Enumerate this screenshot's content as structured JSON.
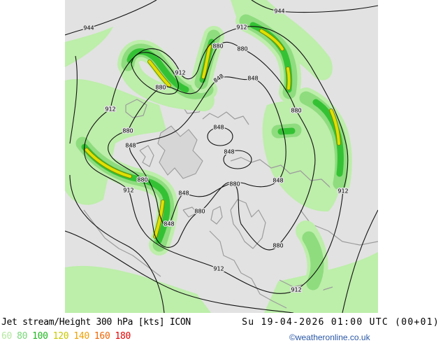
{
  "map": {
    "contour_labels": [
      "944",
      "944",
      "912",
      "880",
      "880",
      "912",
      "848",
      "848",
      "880",
      "912",
      "880",
      "880",
      "848",
      "848",
      "848",
      "880",
      "848",
      "880",
      "912",
      "848",
      "912",
      "880",
      "848",
      "880",
      "912",
      "912"
    ]
  },
  "footer": {
    "title": "Jet stream/Height 300 hPa [kts] ICON",
    "valid_time": "Su 19-04-2026 01:00 UTC (00+01)",
    "legend": [
      {
        "value": "60",
        "color": "#b4e8a0"
      },
      {
        "value": "80",
        "color": "#78d878"
      },
      {
        "value": "100",
        "color": "#20b820"
      },
      {
        "value": "120",
        "color": "#c8c800"
      },
      {
        "value": "140",
        "color": "#f0a000"
      },
      {
        "value": "160",
        "color": "#f06400"
      },
      {
        "value": "180",
        "color": "#e60000"
      }
    ],
    "copyright": "©weatheronline.co.uk"
  }
}
